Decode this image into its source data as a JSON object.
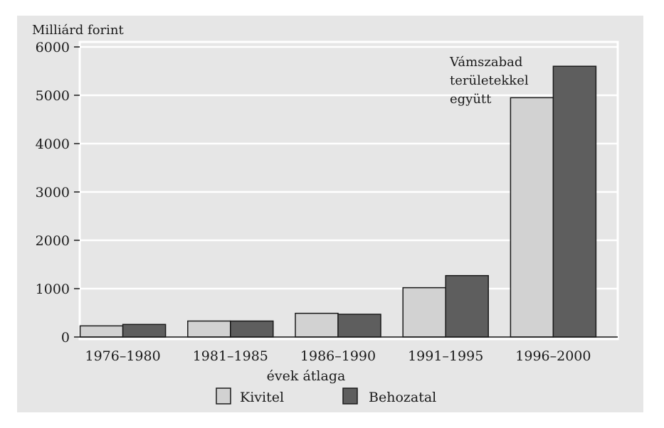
{
  "chart_data": {
    "type": "bar",
    "title": "",
    "ylabel": "Milliárd forint",
    "xlabel": "évek átlaga",
    "ylim": [
      0,
      6000
    ],
    "yticks": [
      0,
      1000,
      2000,
      3000,
      4000,
      5000,
      6000
    ],
    "grid": true,
    "legend_position": "bottom",
    "categories": [
      "1976–1980",
      "1981–1985",
      "1986–1990",
      "1991–1995",
      "1996–2000"
    ],
    "series": [
      {
        "name": "Kivitel",
        "values": [
          230,
          330,
          490,
          1020,
          4950
        ],
        "color": "#d2d2d2"
      },
      {
        "name": "Behozatal",
        "values": [
          260,
          330,
          470,
          1270,
          5600
        ],
        "color": "#5e5e5e"
      }
    ],
    "annotation": [
      "Vámszabad",
      "területekkel",
      "együtt"
    ],
    "colors": {
      "background": "#e6e6e6",
      "grid": "#ffffff",
      "frame": "#ffffff"
    }
  }
}
